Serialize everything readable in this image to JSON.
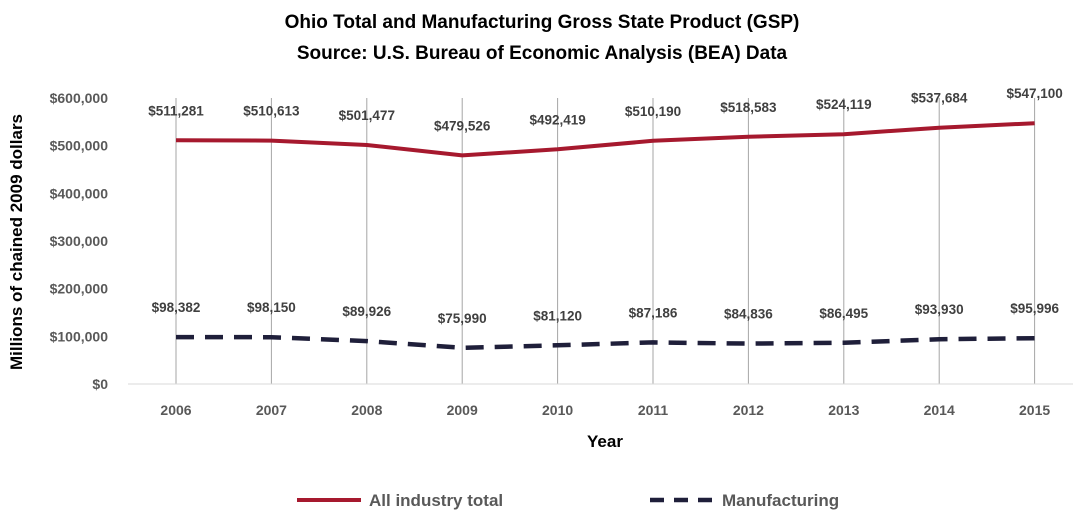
{
  "chart_data": {
    "type": "line",
    "title": "Ohio Total and Manufacturing Gross State Product (GSP)",
    "subtitle": "Source: U.S. Bureau of Economic Analysis (BEA) Data",
    "xlabel": "Year",
    "ylabel": "Millions of chained 2009 dollars",
    "ylim": [
      0,
      600000
    ],
    "yticks": [
      0,
      100000,
      200000,
      300000,
      400000,
      500000,
      600000
    ],
    "ytick_labels": [
      "$0",
      "$100,000",
      "$200,000",
      "$300,000",
      "$400,000",
      "$500,000",
      "$600,000"
    ],
    "categories": [
      "2006",
      "2007",
      "2008",
      "2009",
      "2010",
      "2011",
      "2012",
      "2013",
      "2014",
      "2015"
    ],
    "grid": "vertical",
    "legend_position": "bottom",
    "series": [
      {
        "name": "All industry total",
        "color": "#A6192E",
        "style": "solid",
        "values": [
          511281,
          510613,
          501477,
          479526,
          492419,
          510190,
          518583,
          524119,
          537684,
          547100
        ],
        "labels": [
          "$511,281",
          "$510,613",
          "$501,477",
          "$479,526",
          "$492,419",
          "$510,190",
          "$518,583",
          "$524,119",
          "$537,684",
          "$547,100"
        ]
      },
      {
        "name": "Manufacturing",
        "color": "#1F1F3A",
        "style": "dashed",
        "values": [
          98382,
          98150,
          89926,
          75990,
          81120,
          87186,
          84836,
          86495,
          93930,
          95996
        ],
        "labels": [
          "$98,382",
          "$98,150",
          "$89,926",
          "$75,990",
          "$81,120",
          "$87,186",
          "$84,836",
          "$86,495",
          "$93,930",
          "$95,996"
        ]
      }
    ]
  }
}
